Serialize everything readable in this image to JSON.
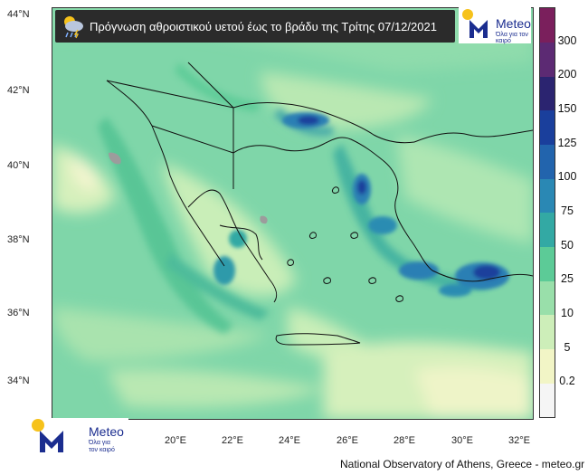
{
  "title": "Πρόγνωση αθροιστικού υετού έως το βράδυ της Τρίτης 07/12/2021",
  "brand": {
    "name": "Meteo",
    "slogan_line1": "Όλα για",
    "slogan_line2": "τον καιρό",
    "slogan_inline": "Όλα για τον καιρό"
  },
  "footer": "National Observatory of Athens, Greece - meteo.gr",
  "axes": {
    "y_labels": [
      "44°N",
      "42°N",
      "40°N",
      "38°N",
      "36°N",
      "34°N"
    ],
    "x_labels": [
      "20°E",
      "22°E",
      "24°E",
      "26°E",
      "28°E",
      "30°E",
      "32°E"
    ]
  },
  "colorbar": {
    "labels": [
      "300",
      "200",
      "150",
      "125",
      "100",
      "75",
      "50",
      "25",
      "10",
      "5",
      "0.2"
    ],
    "colors": [
      "#f5f5f5",
      "#f2f5c6",
      "#cdeeb9",
      "#99dfaa",
      "#5ccb97",
      "#33a9a4",
      "#2a88b4",
      "#2264ad",
      "#1a3f9c",
      "#2b2470",
      "#5c2a73",
      "#7a1f5c"
    ]
  },
  "colors": {
    "sea_base": "#7fd6a9",
    "land_base": "#c6ecb5",
    "coast": "#111111",
    "title_bg": "#2b2b2b"
  },
  "icons": {
    "title_icon": "cloud-rain-icon",
    "logo_icon": "sun-m-logo-icon"
  }
}
